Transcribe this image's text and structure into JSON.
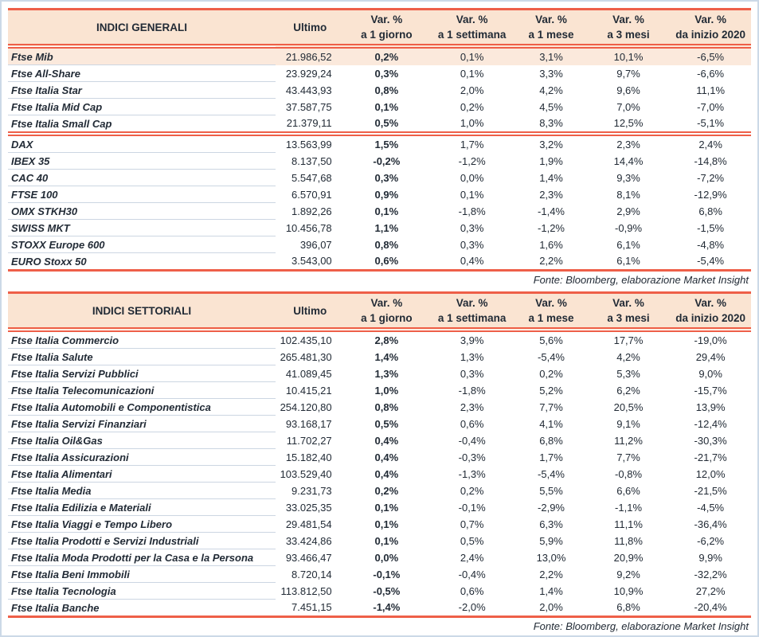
{
  "colors": {
    "accent_red": "#ee5f48",
    "header_bg": "#fae4d2",
    "highlight_row_bg": "#fbe9dc",
    "text": "#222b36",
    "row_divider": "#ccd6e2",
    "outer_frame": "#ccd9e7"
  },
  "tables": [
    {
      "title": "INDICI GENERALI",
      "headers": {
        "ultimo": "Ultimo",
        "var_label": "Var. %",
        "sub": [
          "a 1 giorno",
          "a 1 settimana",
          "a 1 mese",
          "a 3 mesi",
          "da inizio 2020"
        ]
      },
      "rows": [
        {
          "name": "Ftse Mib",
          "ultimo": "21.986,52",
          "vars": [
            "0,2%",
            "0,1%",
            "3,1%",
            "10,1%",
            "-6,5%"
          ],
          "highlight": true
        },
        {
          "name": "Ftse All-Share",
          "ultimo": "23.929,24",
          "vars": [
            "0,3%",
            "0,1%",
            "3,3%",
            "9,7%",
            "-6,6%"
          ]
        },
        {
          "name": "Ftse Italia Star",
          "ultimo": "43.443,93",
          "vars": [
            "0,8%",
            "2,0%",
            "4,2%",
            "9,6%",
            "11,1%"
          ]
        },
        {
          "name": "Ftse Italia Mid Cap",
          "ultimo": "37.587,75",
          "vars": [
            "0,1%",
            "0,2%",
            "4,5%",
            "7,0%",
            "-7,0%"
          ]
        },
        {
          "name": "Ftse Italia Small Cap",
          "ultimo": "21.379,11",
          "vars": [
            "0,5%",
            "1,0%",
            "8,3%",
            "12,5%",
            "-5,1%"
          ],
          "section_end": true
        },
        {
          "name": "DAX",
          "ultimo": "13.563,99",
          "vars": [
            "1,5%",
            "1,7%",
            "3,2%",
            "2,3%",
            "2,4%"
          ]
        },
        {
          "name": "IBEX 35",
          "ultimo": "8.137,50",
          "vars": [
            "-0,2%",
            "-1,2%",
            "1,9%",
            "14,4%",
            "-14,8%"
          ]
        },
        {
          "name": "CAC 40",
          "ultimo": "5.547,68",
          "vars": [
            "0,3%",
            "0,0%",
            "1,4%",
            "9,3%",
            "-7,2%"
          ]
        },
        {
          "name": "FTSE 100",
          "ultimo": "6.570,91",
          "vars": [
            "0,9%",
            "0,1%",
            "2,3%",
            "8,1%",
            "-12,9%"
          ]
        },
        {
          "name": "OMX STKH30",
          "ultimo": "1.892,26",
          "vars": [
            "0,1%",
            "-1,8%",
            "-1,4%",
            "2,9%",
            "6,8%"
          ]
        },
        {
          "name": "SWISS MKT",
          "ultimo": "10.456,78",
          "vars": [
            "1,1%",
            "0,3%",
            "-1,2%",
            "-0,9%",
            "-1,5%"
          ]
        },
        {
          "name": "STOXX Europe 600",
          "ultimo": "396,07",
          "vars": [
            "0,8%",
            "0,3%",
            "1,6%",
            "6,1%",
            "-4,8%"
          ]
        },
        {
          "name": "EURO Stoxx 50",
          "ultimo": "3.543,00",
          "vars": [
            "0,6%",
            "0,4%",
            "2,2%",
            "6,1%",
            "-5,4%"
          ]
        }
      ],
      "fonte": "Fonte: Bloomberg, elaborazione Market Insight"
    },
    {
      "title": "INDICI SETTORIALI",
      "headers": {
        "ultimo": "Ultimo",
        "var_label": "Var. %",
        "sub": [
          "a 1 giorno",
          "a 1 settimana",
          "a 1 mese",
          "a 3 mesi",
          "da inizio 2020"
        ]
      },
      "rows": [
        {
          "name": "Ftse Italia Commercio",
          "ultimo": "102.435,10",
          "vars": [
            "2,8%",
            "3,9%",
            "5,6%",
            "17,7%",
            "-19,0%"
          ]
        },
        {
          "name": "Ftse Italia Salute",
          "ultimo": "265.481,30",
          "vars": [
            "1,4%",
            "1,3%",
            "-5,4%",
            "4,2%",
            "29,4%"
          ]
        },
        {
          "name": "Ftse Italia Servizi Pubblici",
          "ultimo": "41.089,45",
          "vars": [
            "1,3%",
            "0,3%",
            "0,2%",
            "5,3%",
            "9,0%"
          ]
        },
        {
          "name": "Ftse Italia Telecomunicazioni",
          "ultimo": "10.415,21",
          "vars": [
            "1,0%",
            "-1,8%",
            "5,2%",
            "6,2%",
            "-15,7%"
          ]
        },
        {
          "name": "Ftse Italia Automobili e Componentistica",
          "ultimo": "254.120,80",
          "vars": [
            "0,8%",
            "2,3%",
            "7,7%",
            "20,5%",
            "13,9%"
          ]
        },
        {
          "name": "Ftse Italia Servizi Finanziari",
          "ultimo": "93.168,17",
          "vars": [
            "0,5%",
            "0,6%",
            "4,1%",
            "9,1%",
            "-12,4%"
          ]
        },
        {
          "name": "Ftse Italia Oil&Gas",
          "ultimo": "11.702,27",
          "vars": [
            "0,4%",
            "-0,4%",
            "6,8%",
            "11,2%",
            "-30,3%"
          ]
        },
        {
          "name": "Ftse Italia Assicurazioni",
          "ultimo": "15.182,40",
          "vars": [
            "0,4%",
            "-0,3%",
            "1,7%",
            "7,7%",
            "-21,7%"
          ]
        },
        {
          "name": "Ftse Italia Alimentari",
          "ultimo": "103.529,40",
          "vars": [
            "0,4%",
            "-1,3%",
            "-5,4%",
            "-0,8%",
            "12,0%"
          ]
        },
        {
          "name": "Ftse Italia Media",
          "ultimo": "9.231,73",
          "vars": [
            "0,2%",
            "0,2%",
            "5,5%",
            "6,6%",
            "-21,5%"
          ]
        },
        {
          "name": "Ftse Italia Edilizia e Materiali",
          "ultimo": "33.025,35",
          "vars": [
            "0,1%",
            "-0,1%",
            "-2,9%",
            "-1,1%",
            "-4,5%"
          ]
        },
        {
          "name": "Ftse Italia Viaggi e Tempo Libero",
          "ultimo": "29.481,54",
          "vars": [
            "0,1%",
            "0,7%",
            "6,3%",
            "11,1%",
            "-36,4%"
          ]
        },
        {
          "name": "Ftse Italia Prodotti e Servizi Industriali",
          "ultimo": "33.424,86",
          "vars": [
            "0,1%",
            "0,5%",
            "5,9%",
            "11,8%",
            "-6,2%"
          ]
        },
        {
          "name": "Ftse Italia Moda Prodotti per la Casa e la Persona",
          "ultimo": "93.466,47",
          "vars": [
            "0,0%",
            "2,4%",
            "13,0%",
            "20,9%",
            "9,9%"
          ]
        },
        {
          "name": "Ftse Italia Beni Immobili",
          "ultimo": "8.720,14",
          "vars": [
            "-0,1%",
            "-0,4%",
            "2,2%",
            "9,2%",
            "-32,2%"
          ]
        },
        {
          "name": "Ftse Italia Tecnologia",
          "ultimo": "113.812,50",
          "vars": [
            "-0,5%",
            "0,6%",
            "1,4%",
            "10,9%",
            "27,2%"
          ]
        },
        {
          "name": "Ftse Italia Banche",
          "ultimo": "7.451,15",
          "vars": [
            "-1,4%",
            "-2,0%",
            "2,0%",
            "6,8%",
            "-20,4%"
          ]
        }
      ],
      "fonte": "Fonte: Bloomberg, elaborazione Market Insight"
    }
  ]
}
